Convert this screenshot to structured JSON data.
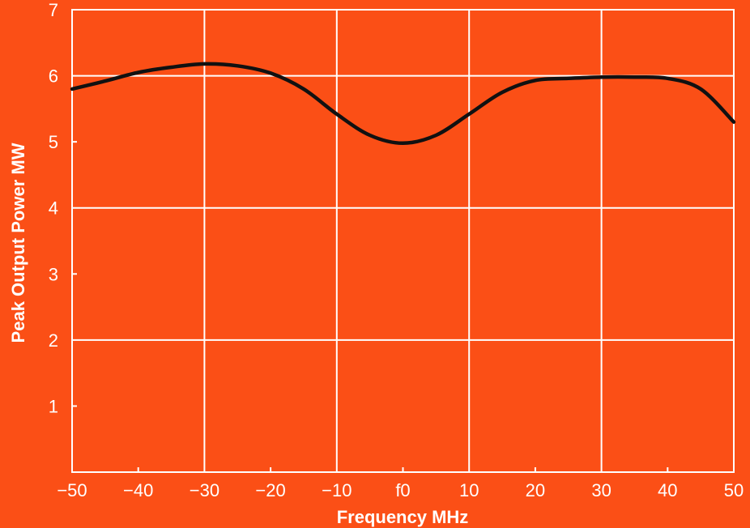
{
  "chart_data": {
    "type": "line",
    "title": "",
    "xlabel": "Frequency MHz",
    "ylabel": "Peak Output Power MW",
    "xlim": [
      -50,
      50
    ],
    "ylim": [
      0,
      7
    ],
    "grid": true,
    "x_ticks": [
      -50,
      -40,
      -30,
      -20,
      -10,
      0,
      10,
      20,
      30,
      40,
      50
    ],
    "x_tick_labels": [
      "−50",
      "−40",
      "−30",
      "−20",
      "−10",
      "f0",
      "10",
      "20",
      "30",
      "40",
      "50"
    ],
    "y_ticks": [
      1,
      2,
      3,
      4,
      5,
      6,
      7
    ],
    "y_tick_labels": [
      "1",
      "2",
      "3",
      "4",
      "5",
      "6",
      "7"
    ],
    "x_grid": [
      -50,
      -30,
      -10,
      10,
      30,
      50
    ],
    "y_grid": [
      2,
      4,
      6
    ],
    "series": [
      {
        "x": [
          -50,
          -45,
          -40,
          -35,
          -30,
          -25,
          -20,
          -15,
          -10,
          -5,
          0,
          5,
          10,
          15,
          20,
          25,
          30,
          35,
          40,
          45,
          50
        ],
        "y": [
          5.8,
          5.92,
          6.05,
          6.13,
          6.18,
          6.15,
          6.04,
          5.8,
          5.42,
          5.1,
          4.98,
          5.1,
          5.42,
          5.75,
          5.93,
          5.96,
          5.98,
          5.98,
          5.96,
          5.8,
          5.3
        ]
      }
    ],
    "colors": {
      "background": "#fb4f16",
      "grid": "#ffffff",
      "line": "#111111",
      "text": "#ffffff"
    }
  }
}
